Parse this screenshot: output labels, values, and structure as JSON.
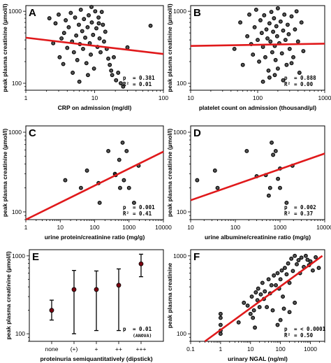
{
  "colors": {
    "regression": "#e0191b",
    "point": "#555555",
    "mean": "#7a0010"
  },
  "chart_data": [
    {
      "panel": "A",
      "type": "scatter",
      "xscale": "log",
      "yscale": "log",
      "xlim": [
        1,
        100
      ],
      "ylim": [
        80,
        1200
      ],
      "xticks": [
        {
          "v": 1,
          "l": "1"
        },
        {
          "v": 10,
          "l": "10"
        },
        {
          "v": 100,
          "l": "100"
        }
      ],
      "yticks": [
        {
          "v": 100,
          "l": "100"
        },
        {
          "v": 1000,
          "l": "1000"
        }
      ],
      "xlabel": "CRP on admission (mg/dl)",
      "ylabel": "peak plasma creatinine (µmol/l)",
      "stats": [
        {
          "k": "p",
          "v": "0.381"
        },
        {
          "k": "R²",
          "v": "0.01"
        }
      ],
      "regression": [
        [
          1,
          430
        ],
        [
          100,
          255
        ]
      ],
      "points": [
        [
          2.2,
          800
        ],
        [
          2.5,
          360
        ],
        [
          2.7,
          680
        ],
        [
          3.0,
          900
        ],
        [
          3.1,
          230
        ],
        [
          3.3,
          420
        ],
        [
          3.6,
          500
        ],
        [
          3.8,
          750
        ],
        [
          4.0,
          310
        ],
        [
          4.2,
          600
        ],
        [
          4.5,
          950
        ],
        [
          4.7,
          380
        ],
        [
          5.0,
          270
        ],
        [
          5.2,
          820
        ],
        [
          5.4,
          460
        ],
        [
          5.6,
          210
        ],
        [
          5.9,
          650
        ],
        [
          6.1,
          350
        ],
        [
          6.3,
          1050
        ],
        [
          6.6,
          530
        ],
        [
          6.8,
          300
        ],
        [
          7.0,
          780
        ],
        [
          7.3,
          430
        ],
        [
          7.6,
          190
        ],
        [
          7.9,
          600
        ],
        [
          8.2,
          880
        ],
        [
          8.5,
          360
        ],
        [
          8.8,
          250
        ],
        [
          9.1,
          700
        ],
        [
          9.5,
          470
        ],
        [
          9.8,
          160
        ],
        [
          10.2,
          1000
        ],
        [
          10.6,
          580
        ],
        [
          11.0,
          320
        ],
        [
          11.4,
          820
        ],
        [
          11.8,
          420
        ],
        [
          12.2,
          270
        ],
        [
          12.7,
          980
        ],
        [
          13.2,
          650
        ],
        [
          13.7,
          380
        ],
        [
          14.3,
          520
        ],
        [
          15.0,
          300
        ],
        [
          15.8,
          220
        ],
        [
          16.6,
          180
        ],
        [
          17.4,
          150
        ],
        [
          18.0,
          130
        ],
        [
          19.0,
          230
        ],
        [
          20.5,
          110
        ],
        [
          22.0,
          140
        ],
        [
          24.0,
          100
        ],
        [
          26.0,
          90
        ],
        [
          30.0,
          315
        ],
        [
          65.0,
          630
        ],
        [
          8.0,
          130
        ],
        [
          6.0,
          105
        ],
        [
          4.8,
          140
        ],
        [
          3.5,
          185
        ],
        [
          9.0,
          1150
        ],
        [
          11.5,
          680
        ]
      ]
    },
    {
      "panel": "B",
      "type": "scatter",
      "xscale": "log",
      "yscale": "log",
      "xlim": [
        10,
        1000
      ],
      "ylim": [
        80,
        1200
      ],
      "xticks": [
        {
          "v": 10,
          "l": "10"
        },
        {
          "v": 100,
          "l": "100"
        },
        {
          "v": 1000,
          "l": "1000"
        }
      ],
      "yticks": [
        {
          "v": 100,
          "l": "100"
        },
        {
          "v": 1000,
          "l": "1000"
        }
      ],
      "xlabel": "platelet count on admission (thousand/µl)",
      "ylabel": "peak plasma creatinine (µmol/l)",
      "stats": [
        {
          "k": "p",
          "v": "0.888"
        },
        {
          "k": "R²",
          "v": "0.00"
        }
      ],
      "regression": [
        [
          10,
          330
        ],
        [
          1000,
          355
        ]
      ],
      "points": [
        [
          45,
          300
        ],
        [
          55,
          700
        ],
        [
          60,
          180
        ],
        [
          70,
          450
        ],
        [
          75,
          900
        ],
        [
          80,
          350
        ],
        [
          85,
          250
        ],
        [
          90,
          600
        ],
        [
          95,
          1050
        ],
        [
          100,
          400
        ],
        [
          105,
          200
        ],
        [
          110,
          750
        ],
        [
          115,
          500
        ],
        [
          120,
          320
        ],
        [
          125,
          880
        ],
        [
          130,
          230
        ],
        [
          135,
          560
        ],
        [
          140,
          420
        ],
        [
          145,
          150
        ],
        [
          150,
          680
        ],
        [
          155,
          380
        ],
        [
          160,
          980
        ],
        [
          165,
          270
        ],
        [
          170,
          520
        ],
        [
          175,
          800
        ],
        [
          180,
          330
        ],
        [
          185,
          210
        ],
        [
          190,
          620
        ],
        [
          195,
          450
        ],
        [
          200,
          1100
        ],
        [
          210,
          360
        ],
        [
          220,
          720
        ],
        [
          230,
          260
        ],
        [
          240,
          540
        ],
        [
          250,
          900
        ],
        [
          260,
          400
        ],
        [
          270,
          180
        ],
        [
          280,
          650
        ],
        [
          290,
          480
        ],
        [
          300,
          300
        ],
        [
          320,
          850
        ],
        [
          340,
          230
        ],
        [
          360,
          560
        ],
        [
          380,
          1000
        ],
        [
          400,
          380
        ],
        [
          420,
          140
        ],
        [
          450,
          700
        ],
        [
          480,
          280
        ],
        [
          150,
          120
        ],
        [
          180,
          130
        ],
        [
          240,
          110
        ],
        [
          120,
          105
        ],
        [
          200,
          160
        ],
        [
          320,
          190
        ]
      ]
    },
    {
      "panel": "C",
      "type": "scatter",
      "xscale": "log",
      "yscale": "log",
      "xlim": [
        1,
        10000
      ],
      "ylim": [
        80,
        1200
      ],
      "xticks": [
        {
          "v": 1,
          "l": "1"
        },
        {
          "v": 10,
          "l": "10"
        },
        {
          "v": 100,
          "l": "100"
        },
        {
          "v": 1000,
          "l": "1000"
        },
        {
          "v": 10000,
          "l": "10000"
        }
      ],
      "yticks": [
        {
          "v": 100,
          "l": "100"
        },
        {
          "v": 1000,
          "l": "1000"
        }
      ],
      "xlabel": "urine protein/creatinine ratio (mg/g)",
      "ylabel": "peak plasma creatinine (µmol/l)",
      "stats": [
        {
          "k": "p",
          "v": "0.001"
        },
        {
          "k": "R²",
          "v": "0.41"
        }
      ],
      "regression": [
        [
          1,
          80
        ],
        [
          10000,
          570
        ]
      ],
      "points": [
        [
          14,
          250
        ],
        [
          40,
          200
        ],
        [
          60,
          330
        ],
        [
          130,
          230
        ],
        [
          140,
          130
        ],
        [
          250,
          580
        ],
        [
          390,
          300
        ],
        [
          410,
          290
        ],
        [
          520,
          450
        ],
        [
          550,
          200
        ],
        [
          650,
          740
        ],
        [
          710,
          250
        ],
        [
          850,
          580
        ],
        [
          1000,
          200
        ],
        [
          1400,
          130
        ],
        [
          1900,
          380
        ]
      ]
    },
    {
      "panel": "D",
      "type": "scatter",
      "xscale": "log",
      "yscale": "log",
      "xlim": [
        10,
        10000
      ],
      "ylim": [
        80,
        1200
      ],
      "xticks": [
        {
          "v": 10,
          "l": "10"
        },
        {
          "v": 100,
          "l": "100"
        },
        {
          "v": 1000,
          "l": "1000"
        },
        {
          "v": 10000,
          "l": "10000"
        }
      ],
      "yticks": [
        {
          "v": 100,
          "l": "100"
        },
        {
          "v": 1000,
          "l": "1000"
        }
      ],
      "xlabel": "urine albumine/creatinine ratio (mg/g)",
      "ylabel": "peak plasma creatinine (µmol/l)",
      "stats": [
        {
          "k": "p",
          "v": "0.002"
        },
        {
          "k": "R²",
          "v": "0.37"
        }
      ],
      "regression": [
        [
          10,
          140
        ],
        [
          10000,
          540
        ]
      ],
      "points": [
        [
          14,
          250
        ],
        [
          35,
          330
        ],
        [
          40,
          200
        ],
        [
          180,
          580
        ],
        [
          300,
          280
        ],
        [
          480,
          290
        ],
        [
          600,
          200
        ],
        [
          650,
          740
        ],
        [
          700,
          520
        ],
        [
          800,
          580
        ],
        [
          900,
          260
        ],
        [
          1000,
          200
        ],
        [
          1400,
          130
        ],
        [
          1900,
          380
        ],
        [
          1000,
          350
        ],
        [
          560,
          160
        ]
      ]
    },
    {
      "panel": "E",
      "type": "errorbar",
      "yscale": "log",
      "ylim": [
        80,
        1200
      ],
      "yticks": [
        {
          "v": 100,
          "l": "100"
        },
        {
          "v": 1000,
          "l": "1000"
        }
      ],
      "categories": [
        "none",
        "(+)",
        "+",
        "++",
        "+++"
      ],
      "means": [
        200,
        370,
        370,
        420,
        790
      ],
      "lower": [
        150,
        100,
        110,
        110,
        540
      ],
      "upper": [
        270,
        650,
        640,
        680,
        1050
      ],
      "xlabel": "proteinuria semiquantitatively (dipstick)",
      "ylabel": "peak plasma creatinine (µmol/l)",
      "stats": [
        {
          "k": "p",
          "v": "0.01"
        }
      ],
      "stat_note": "(ANOVA)"
    },
    {
      "panel": "F",
      "type": "scatter",
      "xscale": "log",
      "yscale": "log",
      "xlim": [
        0.1,
        3000
      ],
      "ylim": [
        80,
        1200
      ],
      "xticks": [
        {
          "v": 0.1,
          "l": "0.1"
        },
        {
          "v": 1,
          "l": "1"
        },
        {
          "v": 10,
          "l": "10"
        },
        {
          "v": 100,
          "l": "100"
        },
        {
          "v": 1000,
          "l": "1000"
        }
      ],
      "yticks": [
        {
          "v": 100,
          "l": "100"
        },
        {
          "v": 1000,
          "l": "1000"
        }
      ],
      "xlabel": "urinary NGAL (ng/ml)",
      "ylabel": "peak plasma creatinine",
      "stats": [
        {
          "k": "p",
          "v": "< 0.0001"
        },
        {
          "k": "R²",
          "v": "0.50"
        }
      ],
      "regression": [
        [
          0.3,
          80
        ],
        [
          2500,
          1000
        ]
      ],
      "points": [
        [
          1,
          100
        ],
        [
          1,
          110
        ],
        [
          1,
          130
        ],
        [
          1,
          160
        ],
        [
          1,
          180
        ],
        [
          4,
          140
        ],
        [
          6,
          250
        ],
        [
          8,
          230
        ],
        [
          10,
          180
        ],
        [
          11,
          300
        ],
        [
          12,
          160
        ],
        [
          13,
          200
        ],
        [
          14,
          120
        ],
        [
          15,
          340
        ],
        [
          17,
          270
        ],
        [
          18,
          380
        ],
        [
          20,
          220
        ],
        [
          22,
          320
        ],
        [
          25,
          450
        ],
        [
          28,
          280
        ],
        [
          30,
          350
        ],
        [
          35,
          220
        ],
        [
          40,
          500
        ],
        [
          45,
          330
        ],
        [
          50,
          420
        ],
        [
          55,
          200
        ],
        [
          60,
          560
        ],
        [
          70,
          420
        ],
        [
          80,
          600
        ],
        [
          90,
          380
        ],
        [
          100,
          500
        ],
        [
          110,
          650
        ],
        [
          120,
          300
        ],
        [
          140,
          700
        ],
        [
          160,
          580
        ],
        [
          180,
          800
        ],
        [
          200,
          450
        ],
        [
          230,
          920
        ],
        [
          260,
          640
        ],
        [
          300,
          1000
        ],
        [
          350,
          780
        ],
        [
          400,
          880
        ],
        [
          450,
          600
        ],
        [
          500,
          950
        ],
        [
          600,
          720
        ],
        [
          700,
          1000
        ],
        [
          800,
          890
        ],
        [
          900,
          760
        ],
        [
          1000,
          850
        ],
        [
          1200,
          650
        ],
        [
          1500,
          960
        ],
        [
          1900,
          700
        ],
        [
          80,
          130
        ],
        [
          100,
          150
        ],
        [
          200,
          190
        ],
        [
          130,
          210
        ],
        [
          300,
          250
        ]
      ]
    }
  ]
}
